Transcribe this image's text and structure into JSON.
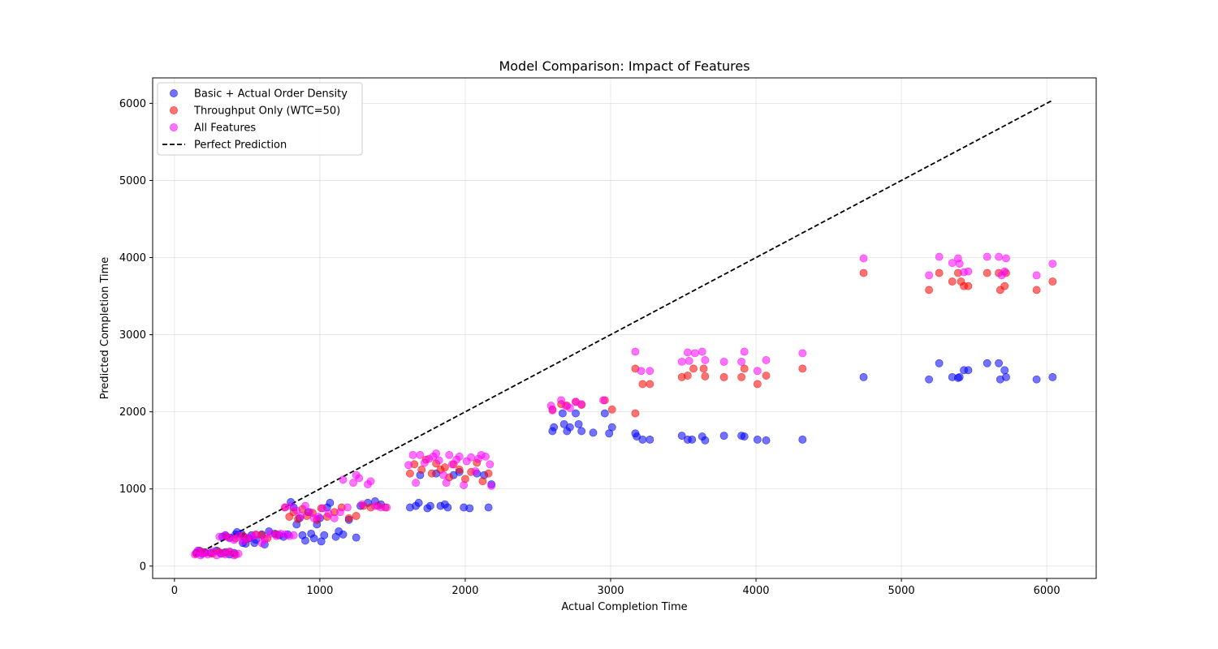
{
  "chart_data": {
    "type": "scatter",
    "title": "Model Comparison: Impact of Features",
    "xlabel": "Actual Completion Time",
    "ylabel": "Predicted Completion Time",
    "xlim": [
      -150,
      6340
    ],
    "ylim": [
      -160,
      6330
    ],
    "xticks": [
      0,
      1000,
      2000,
      3000,
      4000,
      5000,
      6000
    ],
    "yticks": [
      0,
      1000,
      2000,
      3000,
      4000,
      5000,
      6000
    ],
    "grid": true,
    "legend_position": "upper-left",
    "series": [
      {
        "name": "Basic + Actual Order Density",
        "color": "#0000ff",
        "points": [
          [
            150,
            170
          ],
          [
            170,
            200
          ],
          [
            190,
            160
          ],
          [
            210,
            180
          ],
          [
            250,
            170
          ],
          [
            290,
            200
          ],
          [
            320,
            160
          ],
          [
            350,
            180
          ],
          [
            380,
            150
          ],
          [
            410,
            170
          ],
          [
            330,
            380
          ],
          [
            350,
            400
          ],
          [
            380,
            370
          ],
          [
            420,
            410
          ],
          [
            430,
            440
          ],
          [
            460,
            420
          ],
          [
            480,
            380
          ],
          [
            510,
            360
          ],
          [
            530,
            400
          ],
          [
            470,
            300
          ],
          [
            490,
            290
          ],
          [
            550,
            300
          ],
          [
            560,
            340
          ],
          [
            600,
            410
          ],
          [
            620,
            280
          ],
          [
            650,
            450
          ],
          [
            690,
            420
          ],
          [
            720,
            400
          ],
          [
            750,
            380
          ],
          [
            780,
            410
          ],
          [
            800,
            830
          ],
          [
            820,
            760
          ],
          [
            840,
            540
          ],
          [
            860,
            620
          ],
          [
            880,
            400
          ],
          [
            900,
            330
          ],
          [
            920,
            700
          ],
          [
            940,
            420
          ],
          [
            960,
            360
          ],
          [
            980,
            540
          ],
          [
            1000,
            620
          ],
          [
            1010,
            320
          ],
          [
            1030,
            400
          ],
          [
            1050,
            760
          ],
          [
            1070,
            820
          ],
          [
            1110,
            380
          ],
          [
            1130,
            450
          ],
          [
            1160,
            410
          ],
          [
            1200,
            600
          ],
          [
            1250,
            370
          ],
          [
            1280,
            780
          ],
          [
            1330,
            820
          ],
          [
            1380,
            840
          ],
          [
            1420,
            800
          ],
          [
            1620,
            760
          ],
          [
            1660,
            780
          ],
          [
            1680,
            820
          ],
          [
            1690,
            1180
          ],
          [
            1740,
            750
          ],
          [
            1760,
            780
          ],
          [
            1800,
            1200
          ],
          [
            1830,
            780
          ],
          [
            1860,
            800
          ],
          [
            1880,
            760
          ],
          [
            1920,
            1180
          ],
          [
            1960,
            1220
          ],
          [
            1990,
            760
          ],
          [
            2030,
            750
          ],
          [
            2080,
            1200
          ],
          [
            2130,
            1180
          ],
          [
            2160,
            760
          ],
          [
            2180,
            1060
          ],
          [
            2600,
            1750
          ],
          [
            2610,
            1800
          ],
          [
            2670,
            1980
          ],
          [
            2680,
            1840
          ],
          [
            2700,
            1750
          ],
          [
            2720,
            1800
          ],
          [
            2760,
            1980
          ],
          [
            2780,
            1840
          ],
          [
            2800,
            1750
          ],
          [
            2880,
            1730
          ],
          [
            2960,
            1980
          ],
          [
            2990,
            1720
          ],
          [
            3010,
            1800
          ],
          [
            3170,
            1720
          ],
          [
            3180,
            1680
          ],
          [
            3220,
            1640
          ],
          [
            3270,
            1640
          ],
          [
            3490,
            1690
          ],
          [
            3530,
            1640
          ],
          [
            3560,
            1640
          ],
          [
            3630,
            1680
          ],
          [
            3650,
            1630
          ],
          [
            3780,
            1690
          ],
          [
            3900,
            1690
          ],
          [
            3920,
            1680
          ],
          [
            4010,
            1640
          ],
          [
            4070,
            1630
          ],
          [
            4320,
            1640
          ],
          [
            4740,
            2450
          ],
          [
            5190,
            2420
          ],
          [
            5260,
            2630
          ],
          [
            5350,
            2450
          ],
          [
            5390,
            2440
          ],
          [
            5400,
            2450
          ],
          [
            5430,
            2540
          ],
          [
            5460,
            2540
          ],
          [
            5590,
            2630
          ],
          [
            5670,
            2630
          ],
          [
            5680,
            2420
          ],
          [
            5710,
            2540
          ],
          [
            5720,
            2450
          ],
          [
            5930,
            2420
          ],
          [
            6040,
            2450
          ]
        ]
      },
      {
        "name": "Throughput Only (WTC=50)",
        "color": "#ff0000",
        "points": [
          [
            150,
            160
          ],
          [
            180,
            190
          ],
          [
            210,
            170
          ],
          [
            260,
            160
          ],
          [
            300,
            190
          ],
          [
            340,
            170
          ],
          [
            380,
            180
          ],
          [
            420,
            150
          ],
          [
            360,
            380
          ],
          [
            420,
            360
          ],
          [
            470,
            390
          ],
          [
            500,
            350
          ],
          [
            560,
            410
          ],
          [
            600,
            400
          ],
          [
            640,
            360
          ],
          [
            700,
            410
          ],
          [
            760,
            760
          ],
          [
            790,
            640
          ],
          [
            820,
            700
          ],
          [
            850,
            610
          ],
          [
            880,
            740
          ],
          [
            910,
            650
          ],
          [
            950,
            690
          ],
          [
            980,
            600
          ],
          [
            1010,
            750
          ],
          [
            1050,
            640
          ],
          [
            1100,
            700
          ],
          [
            1150,
            760
          ],
          [
            1200,
            620
          ],
          [
            1250,
            650
          ],
          [
            1300,
            780
          ],
          [
            1350,
            760
          ],
          [
            1400,
            780
          ],
          [
            1450,
            760
          ],
          [
            1620,
            1200
          ],
          [
            1650,
            1320
          ],
          [
            1700,
            1250
          ],
          [
            1730,
            1380
          ],
          [
            1770,
            1200
          ],
          [
            1800,
            1330
          ],
          [
            1830,
            1250
          ],
          [
            1860,
            1280
          ],
          [
            1890,
            1150
          ],
          [
            1920,
            1320
          ],
          [
            1960,
            1250
          ],
          [
            2000,
            1130
          ],
          [
            2040,
            1220
          ],
          [
            2080,
            1340
          ],
          [
            2120,
            1100
          ],
          [
            2160,
            1200
          ],
          [
            2600,
            2030
          ],
          [
            2660,
            2100
          ],
          [
            2700,
            2080
          ],
          [
            2760,
            2130
          ],
          [
            2800,
            2090
          ],
          [
            2960,
            2150
          ],
          [
            3010,
            2030
          ],
          [
            3170,
            1980
          ],
          [
            3170,
            2560
          ],
          [
            3220,
            2360
          ],
          [
            3270,
            2360
          ],
          [
            3490,
            2450
          ],
          [
            3530,
            2470
          ],
          [
            3570,
            2560
          ],
          [
            3640,
            2560
          ],
          [
            3650,
            2460
          ],
          [
            3780,
            2450
          ],
          [
            3900,
            2450
          ],
          [
            3920,
            2560
          ],
          [
            4010,
            2360
          ],
          [
            4070,
            2470
          ],
          [
            4320,
            2560
          ],
          [
            4740,
            3800
          ],
          [
            5190,
            3580
          ],
          [
            5260,
            3800
          ],
          [
            5350,
            3690
          ],
          [
            5390,
            3800
          ],
          [
            5410,
            3690
          ],
          [
            5430,
            3630
          ],
          [
            5460,
            3630
          ],
          [
            5590,
            3800
          ],
          [
            5670,
            3800
          ],
          [
            5680,
            3580
          ],
          [
            5710,
            3630
          ],
          [
            5720,
            3800
          ],
          [
            5930,
            3580
          ],
          [
            6040,
            3690
          ]
        ]
      },
      {
        "name": "All Features",
        "color": "#ff00ff",
        "points": [
          [
            140,
            150
          ],
          [
            160,
            200
          ],
          [
            180,
            140
          ],
          [
            200,
            170
          ],
          [
            230,
            150
          ],
          [
            260,
            190
          ],
          [
            290,
            140
          ],
          [
            320,
            170
          ],
          [
            350,
            150
          ],
          [
            380,
            190
          ],
          [
            410,
            140
          ],
          [
            440,
            160
          ],
          [
            310,
            380
          ],
          [
            350,
            400
          ],
          [
            380,
            360
          ],
          [
            410,
            340
          ],
          [
            440,
            390
          ],
          [
            470,
            320
          ],
          [
            500,
            360
          ],
          [
            530,
            380
          ],
          [
            560,
            400
          ],
          [
            600,
            300
          ],
          [
            620,
            350
          ],
          [
            660,
            420
          ],
          [
            700,
            390
          ],
          [
            730,
            420
          ],
          [
            760,
            410
          ],
          [
            790,
            390
          ],
          [
            820,
            400
          ],
          [
            760,
            760
          ],
          [
            800,
            780
          ],
          [
            840,
            720
          ],
          [
            870,
            650
          ],
          [
            900,
            780
          ],
          [
            930,
            700
          ],
          [
            960,
            620
          ],
          [
            990,
            640
          ],
          [
            1020,
            750
          ],
          [
            1060,
            680
          ],
          [
            1100,
            620
          ],
          [
            1140,
            700
          ],
          [
            1160,
            1120
          ],
          [
            1190,
            760
          ],
          [
            1230,
            1080
          ],
          [
            1250,
            1180
          ],
          [
            1270,
            1140
          ],
          [
            1290,
            800
          ],
          [
            1330,
            1060
          ],
          [
            1350,
            1100
          ],
          [
            1380,
            780
          ],
          [
            1420,
            760
          ],
          [
            1460,
            760
          ],
          [
            1610,
            1310
          ],
          [
            1640,
            1440
          ],
          [
            1660,
            1080
          ],
          [
            1690,
            1440
          ],
          [
            1720,
            1340
          ],
          [
            1750,
            1390
          ],
          [
            1780,
            1420
          ],
          [
            1800,
            1460
          ],
          [
            1820,
            1370
          ],
          [
            1850,
            1180
          ],
          [
            1870,
            1080
          ],
          [
            1890,
            1440
          ],
          [
            1910,
            1320
          ],
          [
            1940,
            1380
          ],
          [
            1960,
            1420
          ],
          [
            1990,
            1050
          ],
          [
            2010,
            1360
          ],
          [
            2040,
            1410
          ],
          [
            2070,
            1230
          ],
          [
            2090,
            1390
          ],
          [
            2110,
            1440
          ],
          [
            2140,
            1420
          ],
          [
            2170,
            1320
          ],
          [
            2180,
            1040
          ],
          [
            2590,
            2080
          ],
          [
            2600,
            2020
          ],
          [
            2660,
            2150
          ],
          [
            2690,
            2080
          ],
          [
            2720,
            2050
          ],
          [
            2760,
            2130
          ],
          [
            2800,
            2100
          ],
          [
            2950,
            2150
          ],
          [
            3170,
            2780
          ],
          [
            3210,
            2530
          ],
          [
            3270,
            2530
          ],
          [
            3490,
            2650
          ],
          [
            3530,
            2770
          ],
          [
            3540,
            2660
          ],
          [
            3580,
            2760
          ],
          [
            3630,
            2780
          ],
          [
            3650,
            2670
          ],
          [
            3780,
            2650
          ],
          [
            3900,
            2650
          ],
          [
            3920,
            2780
          ],
          [
            4010,
            2530
          ],
          [
            4070,
            2670
          ],
          [
            4320,
            2760
          ],
          [
            4740,
            3990
          ],
          [
            5190,
            3770
          ],
          [
            5260,
            4010
          ],
          [
            5350,
            3930
          ],
          [
            5390,
            3990
          ],
          [
            5400,
            3920
          ],
          [
            5430,
            3810
          ],
          [
            5460,
            3820
          ],
          [
            5590,
            4010
          ],
          [
            5670,
            4010
          ],
          [
            5690,
            3770
          ],
          [
            5710,
            3820
          ],
          [
            5720,
            3990
          ],
          [
            5930,
            3770
          ],
          [
            6040,
            3920
          ]
        ]
      }
    ],
    "reference_line": {
      "name": "Perfect Prediction",
      "color": "#000000",
      "style": "dashed",
      "x": [
        140,
        6040
      ],
      "y": [
        140,
        6040
      ]
    }
  }
}
